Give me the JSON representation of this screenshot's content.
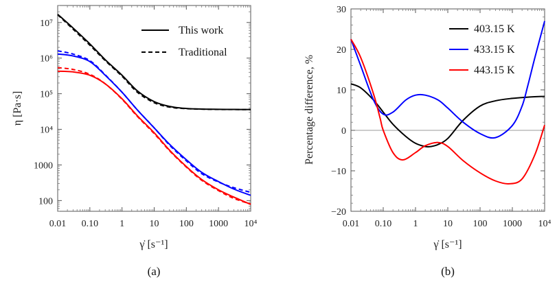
{
  "chart_data": [
    {
      "id": "a",
      "type": "line",
      "caption": "(a)",
      "xlabel": "γ̇ [s⁻¹]",
      "ylabel": "η [Pa·s]",
      "xscale": "log",
      "yscale": "log",
      "xlim": [
        0.01,
        10000
      ],
      "ylim": [
        50,
        30000000
      ],
      "xticks": [
        {
          "value": 0.01,
          "label": "0.01"
        },
        {
          "value": 0.1,
          "label": "0.10"
        },
        {
          "value": 1,
          "label": "1"
        },
        {
          "value": 10,
          "label": "10"
        },
        {
          "value": 100,
          "label": "100"
        },
        {
          "value": 1000,
          "label": "1000"
        },
        {
          "value": 10000,
          "label": "10⁴"
        }
      ],
      "yticks": [
        {
          "value": 100,
          "label": "100"
        },
        {
          "value": 1000,
          "label": "1000"
        },
        {
          "value": 10000,
          "label": "10⁴"
        },
        {
          "value": 100000,
          "label": "10⁵"
        },
        {
          "value": 1000000,
          "label": "10⁶"
        },
        {
          "value": 10000000,
          "label": "10⁷"
        }
      ],
      "legend": {
        "position": "top-right",
        "entries": [
          {
            "label": "This work",
            "style": "solid"
          },
          {
            "label": "Traditional",
            "style": "dashed"
          }
        ]
      },
      "x": [
        0.01,
        0.03,
        0.1,
        0.3,
        1,
        3,
        10,
        30,
        100,
        300,
        1000,
        3000,
        10000
      ],
      "series": [
        {
          "name": "This work 403.15 K",
          "color": "#000000",
          "style": "solid",
          "values": [
            17000000,
            7000000,
            2500000,
            900000,
            330000,
            120000,
            60000,
            44000,
            38500,
            37000,
            36500,
            36200,
            36000
          ]
        },
        {
          "name": "Traditional 403.15 K",
          "color": "#000000",
          "style": "dashed",
          "values": [
            16500000,
            6500000,
            2300000,
            850000,
            310000,
            110000,
            56000,
            42000,
            38000,
            36800,
            36200,
            36000,
            35800
          ]
        },
        {
          "name": "This work 433.15 K",
          "color": "#0000ff",
          "style": "solid",
          "values": [
            1300000,
            1150000,
            800000,
            330000,
            110000,
            35000,
            11000,
            3800,
            1400,
            620,
            340,
            210,
            140
          ]
        },
        {
          "name": "Traditional 433.15 K",
          "color": "#0000ff",
          "style": "dashed",
          "values": [
            1600000,
            1300000,
            850000,
            340000,
            110000,
            35000,
            11000,
            3600,
            1300,
            570,
            330,
            230,
            170
          ]
        },
        {
          "name": "This work 443.15 K",
          "color": "#ff0000",
          "style": "solid",
          "values": [
            430000,
            410000,
            330000,
            190000,
            72000,
            24000,
            8000,
            2600,
            900,
            390,
            200,
            125,
            78
          ]
        },
        {
          "name": "Traditional 443.15 K",
          "color": "#ff0000",
          "style": "dashed",
          "values": [
            540000,
            480000,
            350000,
            190000,
            70000,
            23000,
            7600,
            2500,
            870,
            370,
            190,
            115,
            80
          ]
        }
      ]
    },
    {
      "id": "b",
      "type": "line",
      "caption": "(b)",
      "xlabel": "γ̇ [s⁻¹]",
      "ylabel": "Percentage difference, %",
      "xscale": "log",
      "yscale": "linear",
      "xlim": [
        0.01,
        10000
      ],
      "ylim": [
        -20,
        30
      ],
      "xticks": [
        {
          "value": 0.01,
          "label": "0.01"
        },
        {
          "value": 0.1,
          "label": "0.10"
        },
        {
          "value": 1,
          "label": "1"
        },
        {
          "value": 10,
          "label": "10"
        },
        {
          "value": 100,
          "label": "100"
        },
        {
          "value": 1000,
          "label": "1000"
        },
        {
          "value": 10000,
          "label": "10⁴"
        }
      ],
      "yticks": [
        {
          "value": -20,
          "label": "−20"
        },
        {
          "value": -10,
          "label": "−10"
        },
        {
          "value": 0,
          "label": "0"
        },
        {
          "value": 10,
          "label": "10"
        },
        {
          "value": 20,
          "label": "20"
        },
        {
          "value": 30,
          "label": "30"
        }
      ],
      "zero_line": true,
      "legend": {
        "position": "top-right",
        "entries": [
          {
            "label": "403.15 K",
            "color": "#000000"
          },
          {
            "label": "433.15 K",
            "color": "#0000ff"
          },
          {
            "label": "443.15 K",
            "color": "#ff0000"
          }
        ]
      },
      "series": [
        {
          "name": "403.15 K",
          "color": "#000000",
          "x": [
            0.01,
            0.02,
            0.05,
            0.1,
            0.2,
            0.5,
            1,
            2,
            3,
            5,
            10,
            30,
            100,
            300,
            1000,
            3000,
            10000
          ],
          "values": [
            11.5,
            10.5,
            7.5,
            4.5,
            1.5,
            -1.5,
            -3.2,
            -4.0,
            -4.0,
            -3.5,
            -2,
            2.5,
            6,
            7.3,
            7.9,
            8.2,
            8.4
          ]
        },
        {
          "name": "433.15 K",
          "color": "#0000ff",
          "x": [
            0.01,
            0.02,
            0.05,
            0.1,
            0.2,
            0.5,
            1,
            2,
            5,
            10,
            30,
            100,
            300,
            1000,
            2000,
            3000,
            5000,
            10000
          ],
          "values": [
            22.5,
            16,
            7.5,
            4.0,
            4.5,
            7.5,
            8.7,
            8.7,
            7.5,
            5.5,
            2,
            -0.8,
            -1.8,
            1.2,
            6,
            11,
            18,
            27
          ]
        },
        {
          "name": "443.15 K",
          "color": "#ff0000",
          "x": [
            0.01,
            0.02,
            0.05,
            0.08,
            0.1,
            0.2,
            0.4,
            1,
            2,
            5,
            10,
            30,
            100,
            300,
            800,
            2000,
            5000,
            10000
          ],
          "values": [
            22.5,
            18,
            9,
            3,
            0,
            -5.5,
            -7.3,
            -5.5,
            -3.8,
            -3.0,
            -4.0,
            -7.5,
            -10.5,
            -12.5,
            -13.2,
            -12,
            -6,
            1.3
          ]
        }
      ]
    }
  ]
}
